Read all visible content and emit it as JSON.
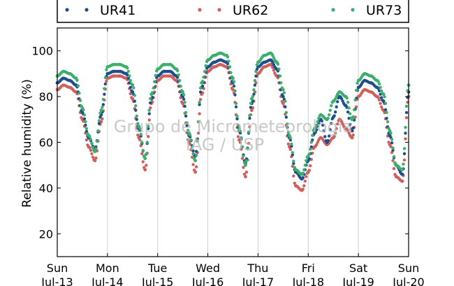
{
  "chart_data": {
    "type": "scatter",
    "ylabel": "Relative humidity (%)",
    "ylim": [
      10,
      110
    ],
    "xlim": [
      "2014-07-13 00:00",
      "2014-07-20 00:00"
    ],
    "yticks": [
      20,
      40,
      60,
      80,
      100
    ],
    "xticks": [
      {
        "day": "Sun",
        "date": "Jul-13"
      },
      {
        "day": "Mon",
        "date": "Jul-14"
      },
      {
        "day": "Tue",
        "date": "Jul-15"
      },
      {
        "day": "Wed",
        "date": "Jul-16"
      },
      {
        "day": "Thu",
        "date": "Jul-17"
      },
      {
        "day": "Fri",
        "date": "Jul-18"
      },
      {
        "day": "Sat",
        "date": "Jul-19"
      },
      {
        "day": "Sun",
        "date": "Jul-20"
      }
    ],
    "grid": "vertical",
    "legend_position": "top",
    "watermark": {
      "line1": "Grupo de Micrometeorologia",
      "line2": "IAG / USP"
    },
    "series": [
      {
        "name": "UR41",
        "color": "#1f4e8c",
        "x": [
          "07-13 00:00",
          "07-13 03:00",
          "07-13 06:00",
          "07-13 09:00",
          "07-13 12:00",
          "07-13 15:00",
          "07-13 18:00",
          "07-13 21:00",
          "07-14 00:00",
          "07-14 03:00",
          "07-14 06:00",
          "07-14 09:00",
          "07-14 12:00",
          "07-14 15:00",
          "07-14 18:00",
          "07-14 21:00",
          "07-15 00:00",
          "07-15 03:00",
          "07-15 06:00",
          "07-15 09:00",
          "07-15 12:00",
          "07-15 15:00",
          "07-15 18:00",
          "07-15 21:00",
          "07-16 00:00",
          "07-16 03:00",
          "07-16 06:00",
          "07-16 09:00",
          "07-16 12:00",
          "07-16 15:00",
          "07-16 18:00",
          "07-16 21:00",
          "07-17 00:00",
          "07-17 03:00",
          "07-17 06:00",
          "07-17 09:00",
          "07-17 12:00",
          "07-17 15:00",
          "07-17 18:00",
          "07-17 21:00",
          "07-18 00:00",
          "07-18 03:00",
          "07-18 06:00",
          "07-18 09:00",
          "07-18 12:00",
          "07-18 15:00",
          "07-18 18:00",
          "07-18 21:00",
          "07-19 00:00",
          "07-19 03:00",
          "07-19 06:00",
          "07-19 09:00",
          "07-19 12:00",
          "07-19 15:00",
          "07-19 18:00",
          "07-19 21:00",
          "07-20 00:00"
        ],
        "values": [
          86,
          88,
          87,
          85,
          73,
          62,
          57,
          72,
          90,
          91,
          91,
          90,
          82,
          66,
          53,
          79,
          89,
          91,
          91,
          89,
          80,
          63,
          54,
          84,
          93,
          95,
          96,
          95,
          86,
          65,
          51,
          77,
          93,
          95,
          96,
          92,
          80,
          62,
          47,
          44,
          52,
          64,
          70,
          60,
          71,
          80,
          76,
          65,
          84,
          87,
          86,
          84,
          78,
          63,
          50,
          46,
          82
        ]
      },
      {
        "name": "UR62",
        "color": "#d0605e",
        "x": [
          "07-13 00:00",
          "07-13 03:00",
          "07-13 06:00",
          "07-13 09:00",
          "07-13 12:00",
          "07-13 15:00",
          "07-13 18:00",
          "07-13 21:00",
          "07-14 00:00",
          "07-14 03:00",
          "07-14 06:00",
          "07-14 09:00",
          "07-14 12:00",
          "07-14 15:00",
          "07-14 18:00",
          "07-14 21:00",
          "07-15 00:00",
          "07-15 03:00",
          "07-15 06:00",
          "07-15 09:00",
          "07-15 12:00",
          "07-15 15:00",
          "07-15 18:00",
          "07-15 21:00",
          "07-16 00:00",
          "07-16 03:00",
          "07-16 06:00",
          "07-16 09:00",
          "07-16 12:00",
          "07-16 15:00",
          "07-16 18:00",
          "07-16 21:00",
          "07-17 00:00",
          "07-17 03:00",
          "07-17 06:00",
          "07-17 09:00",
          "07-17 12:00",
          "07-17 15:00",
          "07-17 18:00",
          "07-17 21:00",
          "07-18 00:00",
          "07-18 03:00",
          "07-18 06:00",
          "07-18 09:00",
          "07-18 12:00",
          "07-18 15:00",
          "07-18 18:00",
          "07-18 21:00",
          "07-19 00:00",
          "07-19 03:00",
          "07-19 06:00",
          "07-19 09:00",
          "07-19 12:00",
          "07-19 15:00",
          "07-19 18:00",
          "07-19 21:00",
          "07-20 00:00"
        ],
        "values": [
          83,
          85,
          84,
          82,
          70,
          58,
          52,
          69,
          88,
          89,
          89,
          88,
          79,
          62,
          48,
          77,
          87,
          89,
          89,
          87,
          77,
          60,
          47,
          81,
          91,
          93,
          94,
          93,
          83,
          61,
          45,
          74,
          90,
          93,
          94,
          89,
          77,
          58,
          41,
          39,
          47,
          58,
          62,
          59,
          62,
          70,
          66,
          62,
          80,
          83,
          82,
          80,
          74,
          59,
          45,
          43,
          80
        ]
      },
      {
        "name": "UR73",
        "color": "#3caf6c",
        "x": [
          "07-13 00:00",
          "07-13 03:00",
          "07-13 06:00",
          "07-13 09:00",
          "07-13 12:00",
          "07-13 15:00",
          "07-13 18:00",
          "07-13 21:00",
          "07-14 00:00",
          "07-14 03:00",
          "07-14 06:00",
          "07-14 09:00",
          "07-14 12:00",
          "07-14 15:00",
          "07-14 18:00",
          "07-14 21:00",
          "07-15 00:00",
          "07-15 03:00",
          "07-15 06:00",
          "07-15 09:00",
          "07-15 12:00",
          "07-15 15:00",
          "07-15 18:00",
          "07-15 21:00",
          "07-16 00:00",
          "07-16 03:00",
          "07-16 06:00",
          "07-16 09:00",
          "07-16 12:00",
          "07-16 15:00",
          "07-16 18:00",
          "07-16 21:00",
          "07-17 00:00",
          "07-17 03:00",
          "07-17 06:00",
          "07-17 09:00",
          "07-17 12:00",
          "07-17 15:00",
          "07-17 18:00",
          "07-17 21:00",
          "07-18 00:00",
          "07-18 03:00",
          "07-18 06:00",
          "07-18 09:00",
          "07-18 12:00",
          "07-18 15:00",
          "07-18 18:00",
          "07-18 21:00",
          "07-19 00:00",
          "07-19 03:00",
          "07-19 06:00",
          "07-19 09:00",
          "07-19 12:00",
          "07-19 15:00",
          "07-19 18:00",
          "07-19 21:00",
          "07-20 00:00"
        ],
        "values": [
          89,
          91,
          90,
          88,
          75,
          63,
          56,
          74,
          93,
          94,
          94,
          93,
          85,
          67,
          53,
          81,
          92,
          94,
          94,
          92,
          82,
          64,
          52,
          86,
          96,
          98,
          99,
          98,
          88,
          66,
          50,
          79,
          95,
          98,
          99,
          95,
          83,
          63,
          48,
          46,
          54,
          66,
          72,
          70,
          78,
          82,
          80,
          70,
          87,
          90,
          89,
          87,
          81,
          65,
          50,
          48,
          85
        ]
      }
    ]
  }
}
